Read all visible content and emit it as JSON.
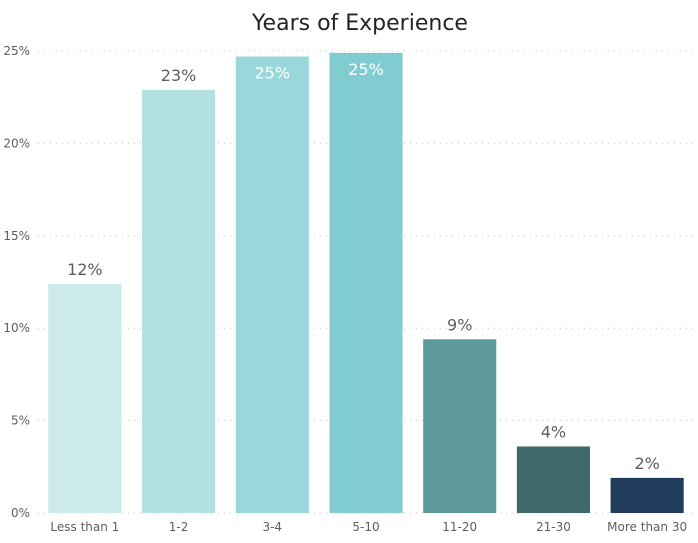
{
  "chart_data": {
    "type": "bar",
    "title": "Years of Experience",
    "xlabel": "",
    "ylabel": "",
    "categories": [
      "Less than 1",
      "1-2",
      "3-4",
      "5-10",
      "11-20",
      "21-30",
      "More than 30"
    ],
    "values": [
      12.4,
      22.9,
      24.7,
      24.9,
      9.4,
      3.6,
      1.9
    ],
    "data_labels": [
      "12%",
      "23%",
      "25%",
      "25%",
      "9%",
      "4%",
      "2%"
    ],
    "label_inside": [
      false,
      false,
      true,
      true,
      false,
      false,
      false
    ],
    "colors": [
      "#cdeaec",
      "#b3e0e3",
      "#99d7da",
      "#80ccd0",
      "#5f9a9b",
      "#3f6a6b",
      "#1f3d5a"
    ],
    "label_colors": [
      "#605e5c",
      "#605e5c",
      "#ffffff",
      "#ffffff",
      "#605e5c",
      "#605e5c",
      "#605e5c"
    ],
    "ylim": [
      0,
      25
    ],
    "yticks": [
      0,
      5,
      10,
      15,
      20,
      25
    ],
    "ytick_labels": [
      "0%",
      "5%",
      "10%",
      "15%",
      "20%",
      "25%"
    ],
    "grid": true,
    "legend": "none"
  }
}
